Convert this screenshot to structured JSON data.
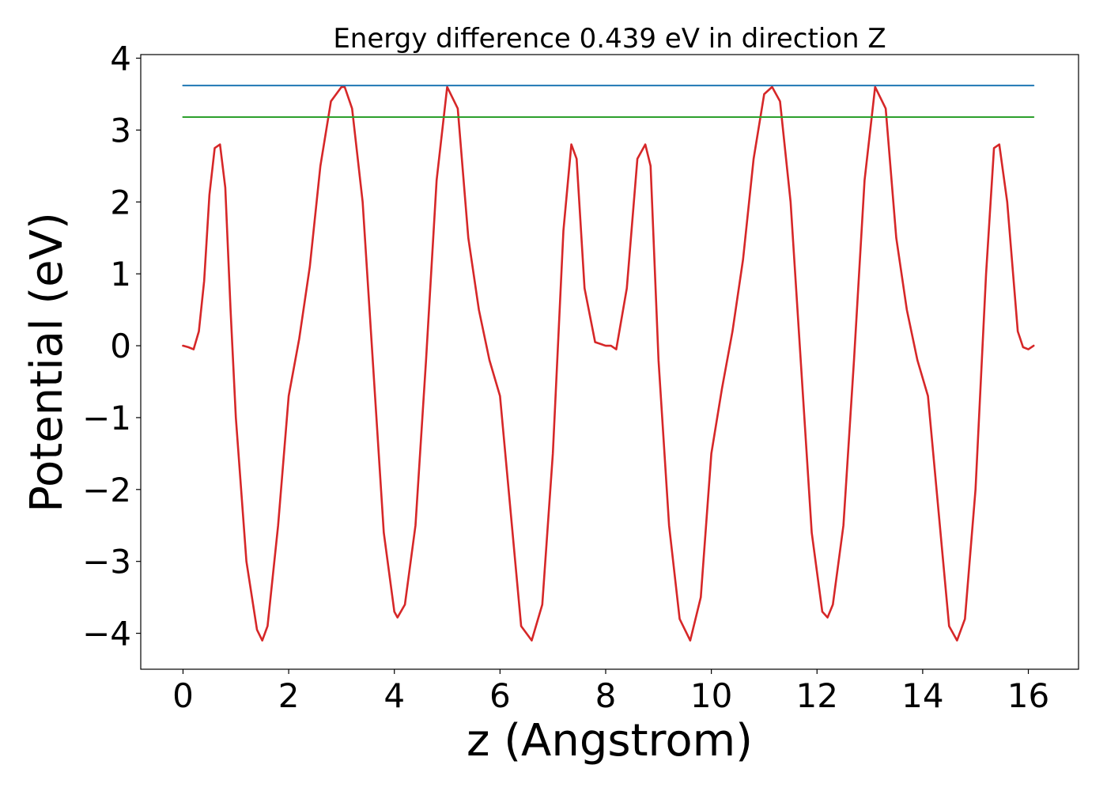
{
  "chart_data": {
    "type": "line",
    "title": "Energy difference 0.439 eV in direction Z",
    "xlabel": "z (Angstrom)",
    "ylabel": "Potential (eV)",
    "xlim": [
      -0.8,
      16.95
    ],
    "ylim": [
      -4.5,
      4.05
    ],
    "xticks": [
      0,
      2,
      4,
      6,
      8,
      10,
      12,
      14,
      16
    ],
    "yticks": [
      -4,
      -3,
      -2,
      -1,
      0,
      1,
      2,
      3,
      4
    ],
    "xtick_labels": [
      "0",
      "2",
      "4",
      "6",
      "8",
      "10",
      "12",
      "14",
      "16"
    ],
    "ytick_labels": [
      "−4",
      "−3",
      "−2",
      "−1",
      "0",
      "1",
      "2",
      "3",
      "4"
    ],
    "grid": false,
    "series": [
      {
        "color": "#d62728",
        "x": [
          0,
          0.1,
          0.2,
          0.3,
          0.4,
          0.5,
          0.6,
          0.7,
          0.8,
          0.9,
          1.0,
          1.2,
          1.4,
          1.5,
          1.6,
          1.8,
          2.0,
          2.2,
          2.4,
          2.6,
          2.8,
          3.0,
          3.06,
          3.2,
          3.4,
          3.6,
          3.8,
          4.0,
          4.06,
          4.2,
          4.4,
          4.6,
          4.8,
          5.0,
          5.2,
          5.4,
          5.6,
          5.8,
          6.0,
          6.2,
          6.4,
          6.6,
          6.8,
          7.0,
          7.2,
          7.35,
          7.45,
          7.6,
          7.8,
          8.0,
          8.1,
          8.2,
          8.4,
          8.6,
          8.75,
          8.85,
          9.0,
          9.2,
          9.4,
          9.6,
          9.8,
          10.0,
          10.2,
          10.4,
          10.6,
          10.8,
          11.0,
          11.15,
          11.3,
          11.5,
          11.7,
          11.9,
          12.1,
          12.2,
          12.3,
          12.5,
          12.7,
          12.9,
          13.1,
          13.3,
          13.5,
          13.7,
          13.9,
          14.1,
          14.3,
          14.5,
          14.65,
          14.8,
          15.0,
          15.2,
          15.35,
          15.45,
          15.6,
          15.8,
          15.9,
          16.0,
          16.1
        ],
        "y": [
          0.0,
          -0.02,
          -0.05,
          0.2,
          0.9,
          2.1,
          2.75,
          2.8,
          2.2,
          0.5,
          -1.0,
          -3.0,
          -3.95,
          -4.1,
          -3.9,
          -2.5,
          -0.7,
          0.1,
          1.1,
          2.5,
          3.4,
          3.6,
          3.6,
          3.3,
          2.0,
          -0.3,
          -2.6,
          -3.7,
          -3.78,
          -3.6,
          -2.5,
          -0.2,
          2.3,
          3.6,
          3.3,
          1.5,
          0.5,
          -0.2,
          -0.7,
          -2.3,
          -3.9,
          -4.1,
          -3.6,
          -1.5,
          1.6,
          2.8,
          2.6,
          0.8,
          0.05,
          0.0,
          0.0,
          -0.05,
          0.8,
          2.6,
          2.8,
          2.5,
          -0.2,
          -2.5,
          -3.8,
          -4.1,
          -3.5,
          -1.5,
          -0.6,
          0.2,
          1.2,
          2.6,
          3.5,
          3.6,
          3.4,
          2.0,
          -0.3,
          -2.6,
          -3.7,
          -3.78,
          -3.6,
          -2.5,
          -0.2,
          2.3,
          3.6,
          3.3,
          1.5,
          0.5,
          -0.2,
          -0.7,
          -2.3,
          -3.9,
          -4.1,
          -3.8,
          -2.0,
          1.0,
          2.75,
          2.8,
          2.0,
          0.2,
          -0.02,
          -0.05,
          0.0
        ]
      },
      {
        "color": "#1f77b4",
        "x": [
          0,
          16.1
        ],
        "y": [
          3.62,
          3.62
        ]
      },
      {
        "color": "#2ca02c",
        "x": [
          0,
          16.1
        ],
        "y": [
          3.18,
          3.18
        ]
      }
    ]
  }
}
